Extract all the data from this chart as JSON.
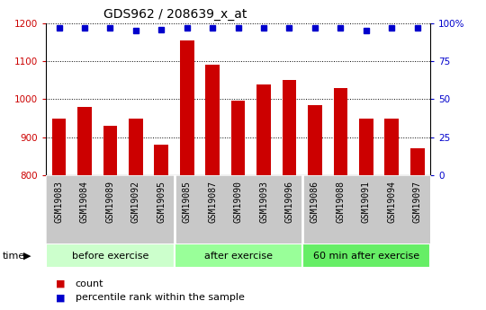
{
  "title": "GDS962 / 208639_x_at",
  "categories": [
    "GSM19083",
    "GSM19084",
    "GSM19089",
    "GSM19092",
    "GSM19095",
    "GSM19085",
    "GSM19087",
    "GSM19090",
    "GSM19093",
    "GSM19096",
    "GSM19086",
    "GSM19088",
    "GSM19091",
    "GSM19094",
    "GSM19097"
  ],
  "bar_values": [
    950,
    980,
    930,
    950,
    880,
    1155,
    1090,
    997,
    1038,
    1050,
    985,
    1030,
    950,
    948,
    870
  ],
  "percentile_values": [
    97,
    97,
    97,
    95,
    96,
    97,
    97,
    97,
    97,
    97,
    97,
    97,
    95,
    97,
    97
  ],
  "bar_color": "#cc0000",
  "dot_color": "#0000cc",
  "ylim_left": [
    800,
    1200
  ],
  "ylim_right": [
    0,
    100
  ],
  "yticks_left": [
    800,
    900,
    1000,
    1100,
    1200
  ],
  "yticks_right": [
    0,
    25,
    50,
    75,
    100
  ],
  "groups": [
    {
      "label": "before exercise",
      "start": 0,
      "end": 5,
      "color": "#ccffcc"
    },
    {
      "label": "after exercise",
      "start": 5,
      "end": 10,
      "color": "#99ff99"
    },
    {
      "label": "60 min after exercise",
      "start": 10,
      "end": 15,
      "color": "#66ee66"
    }
  ],
  "time_label": "time",
  "legend_count_label": "count",
  "legend_percentile_label": "percentile rank within the sample",
  "title_fontsize": 10,
  "tick_fontsize": 7.5,
  "label_fontsize": 7,
  "group_fontsize": 8
}
